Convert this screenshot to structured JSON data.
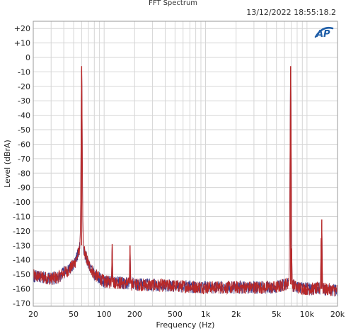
{
  "header": {
    "title": "FFT Spectrum",
    "timestamp": "13/12/2022 18:55:18.2"
  },
  "logo": {
    "text": "AP",
    "color": "#1f5ea8"
  },
  "colors": {
    "plot_border": "#9a9a9a",
    "grid": "#d6d6d6",
    "series_red": "#b82828",
    "series_blue": "#3a3a8c"
  },
  "chart_data": {
    "type": "line",
    "title": "FFT Spectrum",
    "xlabel": "Frequency (Hz)",
    "ylabel": "Level (dBrA)",
    "x_scale": "log",
    "xlim": [
      20,
      20000
    ],
    "ylim": [
      -172,
      25
    ],
    "grid": true,
    "x_ticks": [
      {
        "value": 20,
        "label": "20"
      },
      {
        "value": 50,
        "label": "50"
      },
      {
        "value": 100,
        "label": "100"
      },
      {
        "value": 200,
        "label": "200"
      },
      {
        "value": 500,
        "label": "500"
      },
      {
        "value": 1000,
        "label": "1k"
      },
      {
        "value": 2000,
        "label": "2k"
      },
      {
        "value": 5000,
        "label": "5k"
      },
      {
        "value": 10000,
        "label": "10k"
      },
      {
        "value": 20000,
        "label": "20k"
      }
    ],
    "y_ticks": [
      {
        "value": 20,
        "label": "+20"
      },
      {
        "value": 10,
        "label": "+10"
      },
      {
        "value": 0,
        "label": "0"
      },
      {
        "value": -10,
        "label": "-10"
      },
      {
        "value": -20,
        "label": "-20"
      },
      {
        "value": -30,
        "label": "-30"
      },
      {
        "value": -40,
        "label": "-40"
      },
      {
        "value": -50,
        "label": "-50"
      },
      {
        "value": -60,
        "label": "-60"
      },
      {
        "value": -70,
        "label": "-70"
      },
      {
        "value": -80,
        "label": "-80"
      },
      {
        "value": -90,
        "label": "-90"
      },
      {
        "value": -100,
        "label": "-100"
      },
      {
        "value": -110,
        "label": "-110"
      },
      {
        "value": -120,
        "label": "-120"
      },
      {
        "value": -130,
        "label": "-130"
      },
      {
        "value": -140,
        "label": "-140"
      },
      {
        "value": -150,
        "label": "-150"
      },
      {
        "value": -160,
        "label": "-160"
      },
      {
        "value": -170,
        "label": "-170"
      }
    ],
    "noise_floor_points": [
      [
        20,
        -151
      ],
      [
        25,
        -152
      ],
      [
        30,
        -153
      ],
      [
        35,
        -152
      ],
      [
        40,
        -149
      ],
      [
        45,
        -147
      ],
      [
        50,
        -143
      ],
      [
        53,
        -140
      ],
      [
        56,
        -135
      ],
      [
        58,
        -130
      ],
      [
        62,
        -130
      ],
      [
        65,
        -136
      ],
      [
        70,
        -143
      ],
      [
        80,
        -150
      ],
      [
        100,
        -155
      ],
      [
        150,
        -156
      ],
      [
        200,
        -157
      ],
      [
        500,
        -158
      ],
      [
        1000,
        -159
      ],
      [
        2000,
        -159
      ],
      [
        5000,
        -159
      ],
      [
        6500,
        -156
      ],
      [
        8000,
        -159
      ],
      [
        10000,
        -160
      ],
      [
        14000,
        -160
      ],
      [
        20000,
        -161
      ]
    ],
    "series": [
      {
        "color": "#b82828",
        "role": "primary"
      },
      {
        "color": "#3a3a8c",
        "role": "secondary"
      }
    ],
    "peaks": [
      {
        "frequency": 60,
        "level": -6
      },
      {
        "frequency": 120,
        "level": -129
      },
      {
        "frequency": 180,
        "level": -130
      },
      {
        "frequency": 6900,
        "level": -6
      },
      {
        "frequency": 7000,
        "level": -132
      },
      {
        "frequency": 14000,
        "level": -112
      },
      {
        "frequency": 13800,
        "level": -125
      }
    ]
  }
}
